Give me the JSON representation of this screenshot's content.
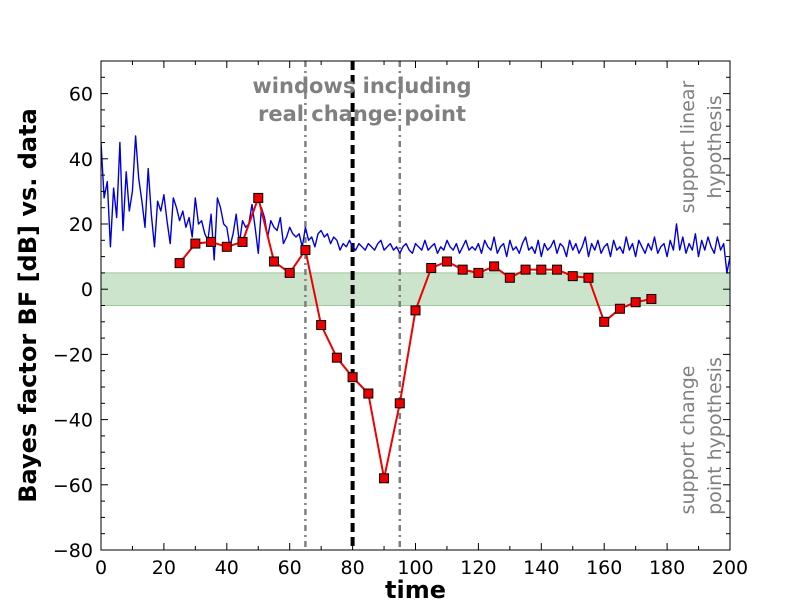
{
  "chart_data": {
    "type": "line",
    "xlabel": "time",
    "ylabel": "Bayes factor BF [dB] vs. data",
    "xlim": [
      0,
      200
    ],
    "ylim": [
      -80,
      70
    ],
    "xticks": [
      "0",
      "20",
      "40",
      "60",
      "80",
      "100",
      "120",
      "140",
      "160",
      "180",
      "200"
    ],
    "yticks": [
      "−80",
      "−60",
      "−40",
      "−20",
      "0",
      "20",
      "40",
      "60"
    ],
    "band": {
      "y0": -5,
      "y1": 5,
      "color": "#cce4cc",
      "edge": "#9ec89e"
    },
    "vlines": [
      {
        "x": 65,
        "style": "dashdot",
        "color": "#808080"
      },
      {
        "x": 80,
        "style": "dashed",
        "color": "#000000"
      },
      {
        "x": 95,
        "style": "dashdot",
        "color": "#808080"
      }
    ],
    "annotations": {
      "windows_line1": "windows including",
      "windows_line2": "real change point",
      "linear_line1": "support linear",
      "linear_line2": "hypothesis",
      "change_line1": "support change",
      "change_line2": "point hypothesis"
    },
    "series": [
      {
        "color": "#0000dd",
        "marker": "none",
        "x": [
          0,
          1,
          2,
          3,
          4,
          5,
          6,
          7,
          8,
          9,
          10,
          11,
          12,
          13,
          14,
          15,
          16,
          17,
          18,
          19,
          20,
          21,
          22,
          23,
          24,
          25,
          26,
          27,
          28,
          29,
          30,
          31,
          32,
          33,
          34,
          35,
          36,
          37,
          38,
          39,
          40,
          41,
          42,
          43,
          44,
          45,
          46,
          47,
          48,
          49,
          50,
          51,
          52,
          53,
          54,
          55,
          56,
          57,
          58,
          59,
          60,
          61,
          62,
          63,
          64,
          65,
          66,
          67,
          68,
          69,
          70,
          71,
          72,
          73,
          74,
          75,
          76,
          77,
          78,
          79,
          80,
          81,
          82,
          83,
          84,
          85,
          86,
          87,
          88,
          89,
          90,
          91,
          92,
          93,
          94,
          95,
          96,
          97,
          98,
          99,
          100,
          101,
          102,
          103,
          104,
          105,
          106,
          107,
          108,
          109,
          110,
          111,
          112,
          113,
          114,
          115,
          116,
          117,
          118,
          119,
          120,
          121,
          122,
          123,
          124,
          125,
          126,
          127,
          128,
          129,
          130,
          131,
          132,
          133,
          134,
          135,
          136,
          137,
          138,
          139,
          140,
          141,
          142,
          143,
          144,
          145,
          146,
          147,
          148,
          149,
          150,
          151,
          152,
          153,
          154,
          155,
          156,
          157,
          158,
          159,
          160,
          161,
          162,
          163,
          164,
          165,
          166,
          167,
          168,
          169,
          170,
          171,
          172,
          173,
          174,
          175,
          176,
          177,
          178,
          179,
          180,
          181,
          182,
          183,
          184,
          185,
          186,
          187,
          188,
          189,
          190,
          191,
          192,
          193,
          194,
          195,
          196,
          197,
          198,
          199,
          200
        ],
        "y": [
          45,
          28,
          33,
          13,
          31,
          22,
          45,
          18,
          36,
          24,
          30,
          47,
          34,
          27,
          19,
          37,
          23,
          13,
          27,
          24,
          29,
          21,
          14,
          28,
          25,
          21,
          24,
          19,
          22,
          16,
          28,
          20,
          21,
          17,
          15,
          23,
          9,
          28,
          25,
          20,
          19,
          13,
          17,
          23,
          14,
          21,
          19,
          20,
          26,
          19,
          11,
          25,
          22,
          16,
          21,
          19,
          18,
          22,
          14,
          16,
          19,
          17,
          16,
          17,
          13,
          19,
          15,
          16,
          13,
          17,
          18,
          16,
          17,
          14,
          16,
          15,
          12,
          14,
          13,
          15,
          13,
          12,
          14,
          13,
          12,
          14,
          13,
          12,
          14,
          15,
          12,
          13,
          14,
          12,
          13,
          11,
          13,
          14,
          12,
          11,
          14,
          13,
          12,
          15,
          12,
          13,
          14,
          11,
          13,
          12,
          15,
          13,
          12,
          14,
          11,
          13,
          15,
          12,
          13,
          12,
          14,
          11,
          15,
          13,
          12,
          16,
          11,
          13,
          14,
          10,
          15,
          12,
          13,
          11,
          14,
          16,
          12,
          13,
          11,
          15,
          10,
          14,
          12,
          13,
          15,
          11,
          14,
          13,
          10,
          15,
          12,
          14,
          11,
          13,
          16,
          10,
          14,
          12,
          15,
          11,
          13,
          14,
          10,
          15,
          12,
          13,
          11,
          16,
          12,
          14,
          10,
          15,
          13,
          11,
          14,
          12,
          16,
          11,
          13,
          14,
          10,
          15,
          12,
          20,
          12,
          16,
          11,
          14,
          12,
          17,
          10,
          15,
          12,
          16,
          13,
          11,
          16,
          12,
          14,
          5,
          10
        ]
      },
      {
        "color": "#ee0000",
        "marker": "square",
        "x": [
          25,
          30,
          35,
          40,
          45,
          50,
          55,
          60,
          65,
          70,
          75,
          80,
          85,
          90,
          95,
          100,
          105,
          110,
          115,
          120,
          125,
          130,
          135,
          140,
          145,
          150,
          155,
          160,
          165,
          170,
          175
        ],
        "y": [
          8,
          14,
          14.5,
          13,
          14.5,
          28,
          8.5,
          5,
          12,
          -11,
          -21,
          -27,
          -32,
          -58,
          -35,
          -6.5,
          6.5,
          8.5,
          6,
          5,
          7,
          3.5,
          6,
          6,
          6,
          4,
          3.5,
          -10,
          -6,
          -4,
          -3
        ]
      }
    ]
  }
}
